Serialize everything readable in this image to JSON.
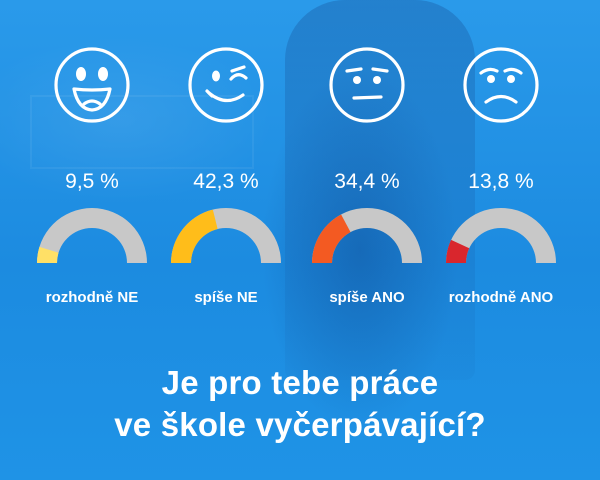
{
  "chart_data": {
    "type": "gauge",
    "unit": "%",
    "categories": [
      "rozhodně NE",
      "spíše NE",
      "spíše ANO",
      "rozhodně ANO"
    ],
    "values": [
      9.5,
      42.3,
      34.4,
      13.8
    ],
    "value_labels": [
      "9,5 %",
      "42,3 %",
      "34,4 %",
      "13,8 %"
    ],
    "range": [
      0,
      100
    ],
    "faces": [
      "laughing-face-icon",
      "winking-face-icon",
      "neutral-face-icon",
      "sad-face-icon"
    ],
    "colors": [
      "#ffe066",
      "#ffbd1a",
      "#f35a22",
      "#d9262d"
    ],
    "track_color": "#c8c8c8"
  },
  "question": {
    "line1": "Je pro tebe práce",
    "line2": "ve škole vyčerpávající?"
  },
  "background_color": "#1f8fe0"
}
